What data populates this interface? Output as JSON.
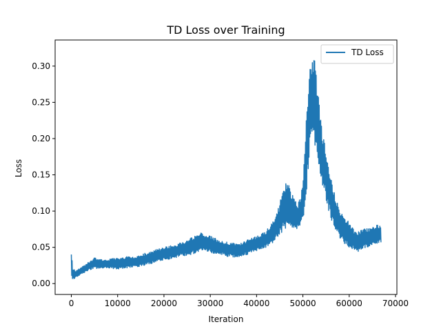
{
  "chart_data": {
    "type": "line",
    "title": "TD Loss over Training",
    "xlabel": "Iteration",
    "ylabel": "Loss",
    "xlim": [
      -3500,
      70300
    ],
    "ylim": [
      -0.015,
      0.336
    ],
    "xticks": [
      0,
      10000,
      20000,
      30000,
      40000,
      50000,
      60000,
      70000
    ],
    "xtick_labels": [
      "0",
      "10000",
      "20000",
      "30000",
      "40000",
      "50000",
      "60000",
      "70000"
    ],
    "yticks": [
      0.0,
      0.05,
      0.1,
      0.15,
      0.2,
      0.25,
      0.3
    ],
    "ytick_labels": [
      "0.00",
      "0.05",
      "0.10",
      "0.15",
      "0.20",
      "0.25",
      "0.30"
    ],
    "grid": false,
    "legend": {
      "position": "top-right",
      "entries": [
        "TD Loss"
      ]
    },
    "series": [
      {
        "name": "TD Loss",
        "color": "#1f77b4",
        "x": [
          0,
          300,
          1000,
          2000,
          3000,
          4000,
          5000,
          6000,
          8000,
          10000,
          12000,
          14000,
          16000,
          18000,
          20000,
          22000,
          24000,
          26000,
          28000,
          30000,
          32000,
          34000,
          36000,
          38000,
          40000,
          42000,
          44000,
          45000,
          46000,
          47000,
          48000,
          49000,
          50000,
          50500,
          51000,
          51500,
          52000,
          52500,
          53000,
          53500,
          54000,
          55000,
          56000,
          57000,
          58000,
          59000,
          60000,
          61000,
          62000,
          63000,
          64000,
          65000,
          66000,
          66900
        ],
        "low": [
          0.001,
          0.005,
          0.008,
          0.012,
          0.016,
          0.019,
          0.021,
          0.02,
          0.021,
          0.02,
          0.021,
          0.022,
          0.025,
          0.029,
          0.032,
          0.035,
          0.038,
          0.04,
          0.046,
          0.043,
          0.04,
          0.037,
          0.036,
          0.04,
          0.045,
          0.05,
          0.058,
          0.068,
          0.072,
          0.075,
          0.073,
          0.075,
          0.085,
          0.11,
          0.14,
          0.18,
          0.2,
          0.195,
          0.17,
          0.155,
          0.14,
          0.115,
          0.09,
          0.075,
          0.063,
          0.055,
          0.05,
          0.046,
          0.043,
          0.048,
          0.05,
          0.052,
          0.055,
          0.057
        ],
        "high": [
          0.05,
          0.022,
          0.018,
          0.022,
          0.026,
          0.031,
          0.036,
          0.033,
          0.034,
          0.036,
          0.037,
          0.038,
          0.042,
          0.046,
          0.05,
          0.053,
          0.057,
          0.064,
          0.07,
          0.066,
          0.06,
          0.057,
          0.055,
          0.06,
          0.066,
          0.072,
          0.09,
          0.11,
          0.142,
          0.135,
          0.12,
          0.11,
          0.135,
          0.2,
          0.265,
          0.305,
          0.318,
          0.31,
          0.28,
          0.25,
          0.22,
          0.185,
          0.15,
          0.12,
          0.1,
          0.09,
          0.085,
          0.074,
          0.072,
          0.075,
          0.076,
          0.078,
          0.081,
          0.08
        ]
      }
    ]
  }
}
